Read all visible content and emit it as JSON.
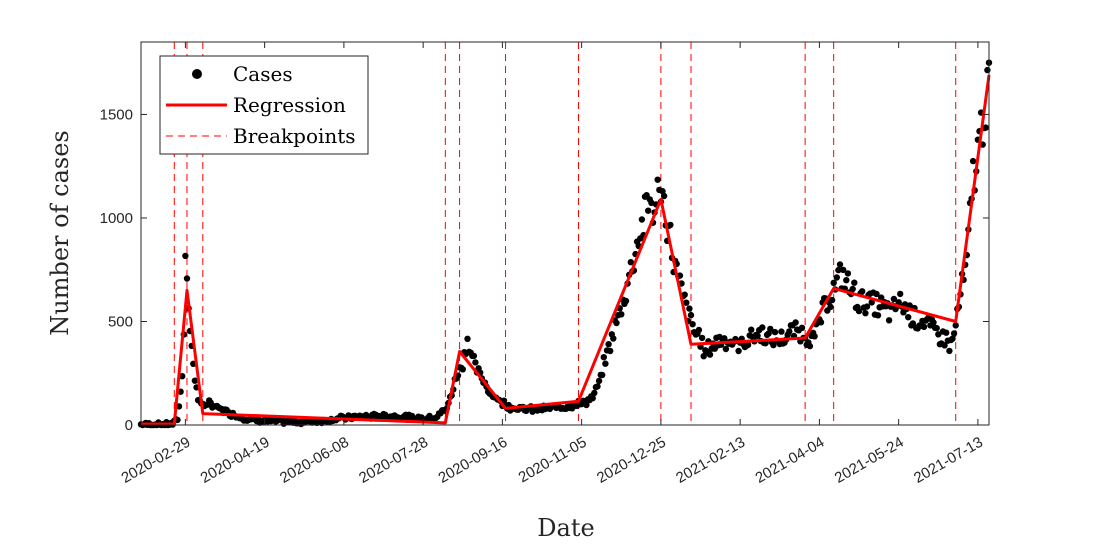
{
  "chart_data": {
    "type": "scatter",
    "xlabel": "Date",
    "ylabel": "Number of cases",
    "x_range": [
      "2020-02-01",
      "2021-07-20"
    ],
    "ylim": [
      0,
      1850
    ],
    "y_ticks": [
      0,
      500,
      1000,
      1500
    ],
    "x_ticks": [
      "2020-02-29",
      "2020-04-19",
      "2020-06-08",
      "2020-07-28",
      "2020-09-16",
      "2020-11-05",
      "2020-12-25",
      "2021-02-13",
      "2021-04-04",
      "2021-05-24",
      "2021-07-13"
    ],
    "grid": false,
    "legend": {
      "position": "top-left",
      "entries": [
        "Cases",
        "Regression",
        "Breakpoints"
      ]
    },
    "colors": {
      "cases": "#000000",
      "regression": "#ff0000",
      "breakpoints": "#ff0000"
    },
    "series": [
      {
        "name": "Cases",
        "x": [
          "2020-02-01",
          "2020-02-06",
          "2020-02-11",
          "2020-02-16",
          "2020-02-21",
          "2020-02-24",
          "2020-02-26",
          "2020-02-27",
          "2020-02-28",
          "2020-02-29",
          "2020-03-01",
          "2020-03-02",
          "2020-03-03",
          "2020-03-04",
          "2020-03-05",
          "2020-03-06",
          "2020-03-07",
          "2020-03-08",
          "2020-03-10",
          "2020-03-12",
          "2020-03-15",
          "2020-03-18",
          "2020-03-22",
          "2020-03-27",
          "2020-04-03",
          "2020-04-10",
          "2020-04-19",
          "2020-05-01",
          "2020-05-15",
          "2020-05-25",
          "2020-06-08",
          "2020-06-20",
          "2020-07-05",
          "2020-07-15",
          "2020-07-28",
          "2020-08-05",
          "2020-08-12",
          "2020-08-16",
          "2020-08-19",
          "2020-08-22",
          "2020-08-25",
          "2020-08-27",
          "2020-08-29",
          "2020-09-01",
          "2020-09-05",
          "2020-09-10",
          "2020-09-16",
          "2020-09-20",
          "2020-09-26",
          "2020-10-05",
          "2020-10-15",
          "2020-10-25",
          "2020-11-03",
          "2020-11-07",
          "2020-11-12",
          "2020-11-16",
          "2020-11-20",
          "2020-11-24",
          "2020-11-28",
          "2020-12-02",
          "2020-12-06",
          "2020-12-10",
          "2020-12-14",
          "2020-12-16",
          "2020-12-19",
          "2020-12-22",
          "2020-12-24",
          "2020-12-25",
          "2020-12-27",
          "2020-12-30",
          "2021-01-02",
          "2021-01-05",
          "2021-01-08",
          "2021-01-11",
          "2021-01-14",
          "2021-01-16",
          "2021-01-18",
          "2021-01-22",
          "2021-01-27",
          "2021-02-02",
          "2021-02-07",
          "2021-02-13",
          "2021-02-20",
          "2021-02-27",
          "2021-03-06",
          "2021-03-13",
          "2021-03-20",
          "2021-03-27",
          "2021-04-01",
          "2021-04-04",
          "2021-04-07",
          "2021-04-10",
          "2021-04-13",
          "2021-04-16",
          "2021-04-19",
          "2021-04-22",
          "2021-04-25",
          "2021-04-28",
          "2021-05-01",
          "2021-05-05",
          "2021-05-10",
          "2021-05-15",
          "2021-05-20",
          "2021-05-24",
          "2021-05-29",
          "2021-06-03",
          "2021-06-08",
          "2021-06-12",
          "2021-06-16",
          "2021-06-20",
          "2021-06-23",
          "2021-06-26",
          "2021-06-29",
          "2021-07-02",
          "2021-07-04",
          "2021-07-06",
          "2021-07-08",
          "2021-07-10",
          "2021-07-12",
          "2021-07-13",
          "2021-07-15",
          "2021-07-17",
          "2021-07-19",
          "2021-07-20"
        ],
        "y": [
          2,
          3,
          2,
          4,
          5,
          30,
          150,
          260,
          450,
          900,
          680,
          520,
          460,
          380,
          300,
          230,
          180,
          120,
          90,
          100,
          110,
          90,
          80,
          60,
          40,
          25,
          20,
          15,
          15,
          20,
          35,
          40,
          45,
          40,
          30,
          40,
          80,
          180,
          260,
          300,
          420,
          350,
          300,
          250,
          200,
          140,
          110,
          90,
          80,
          75,
          80,
          90,
          100,
          110,
          130,
          200,
          320,
          420,
          520,
          620,
          750,
          880,
          980,
          1050,
          1080,
          1000,
          1230,
          1120,
          1060,
          950,
          800,
          700,
          620,
          540,
          480,
          440,
          430,
          350,
          390,
          420,
          400,
          380,
          430,
          440,
          410,
          420,
          460,
          430,
          420,
          500,
          560,
          620,
          650,
          700,
          720,
          680,
          640,
          610,
          600,
          590,
          580,
          560,
          540,
          600,
          560,
          520,
          500,
          480,
          450,
          430,
          420,
          380,
          480,
          630,
          700,
          780,
          1000,
          1200,
          1260,
          1320,
          1420,
          1560,
          1560,
          1750
        ],
        "marker": "filled-circle"
      },
      {
        "name": "Regression",
        "x": [
          "2020-02-01",
          "2020-02-22",
          "2020-03-01",
          "2020-03-11",
          "2020-08-11",
          "2020-08-20",
          "2020-09-18",
          "2020-11-03",
          "2020-12-25",
          "2021-01-13",
          "2021-03-26",
          "2021-04-13",
          "2021-06-29",
          "2021-07-20"
        ],
        "y": [
          5,
          5,
          650,
          55,
          10,
          355,
          80,
          115,
          1090,
          390,
          420,
          660,
          500,
          1690
        ]
      }
    ],
    "breakpoints": [
      "2020-02-22",
      "2020-03-01",
      "2020-03-11",
      "2020-08-11",
      "2020-08-20",
      "2020-09-18",
      "2020-11-03",
      "2020-12-25",
      "2021-01-13",
      "2021-03-26",
      "2021-04-13",
      "2021-06-29"
    ]
  }
}
